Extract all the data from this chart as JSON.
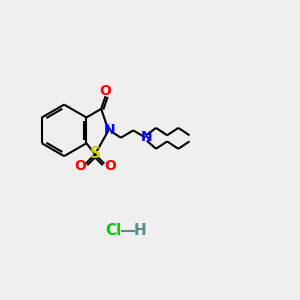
{
  "bg_color": "#efefef",
  "bond_color": "#000000",
  "N_color": "#0000ff",
  "O_color": "#ff0000",
  "S_color": "#cccc00",
  "Cl_color": "#00cc00",
  "H_color": "#5a8a8a",
  "line_width": 1.5,
  "font_size": 10,
  "figsize": [
    3.0,
    3.0
  ],
  "dpi": 100,
  "xlim": [
    0,
    12
  ],
  "ylim": [
    0,
    10
  ]
}
